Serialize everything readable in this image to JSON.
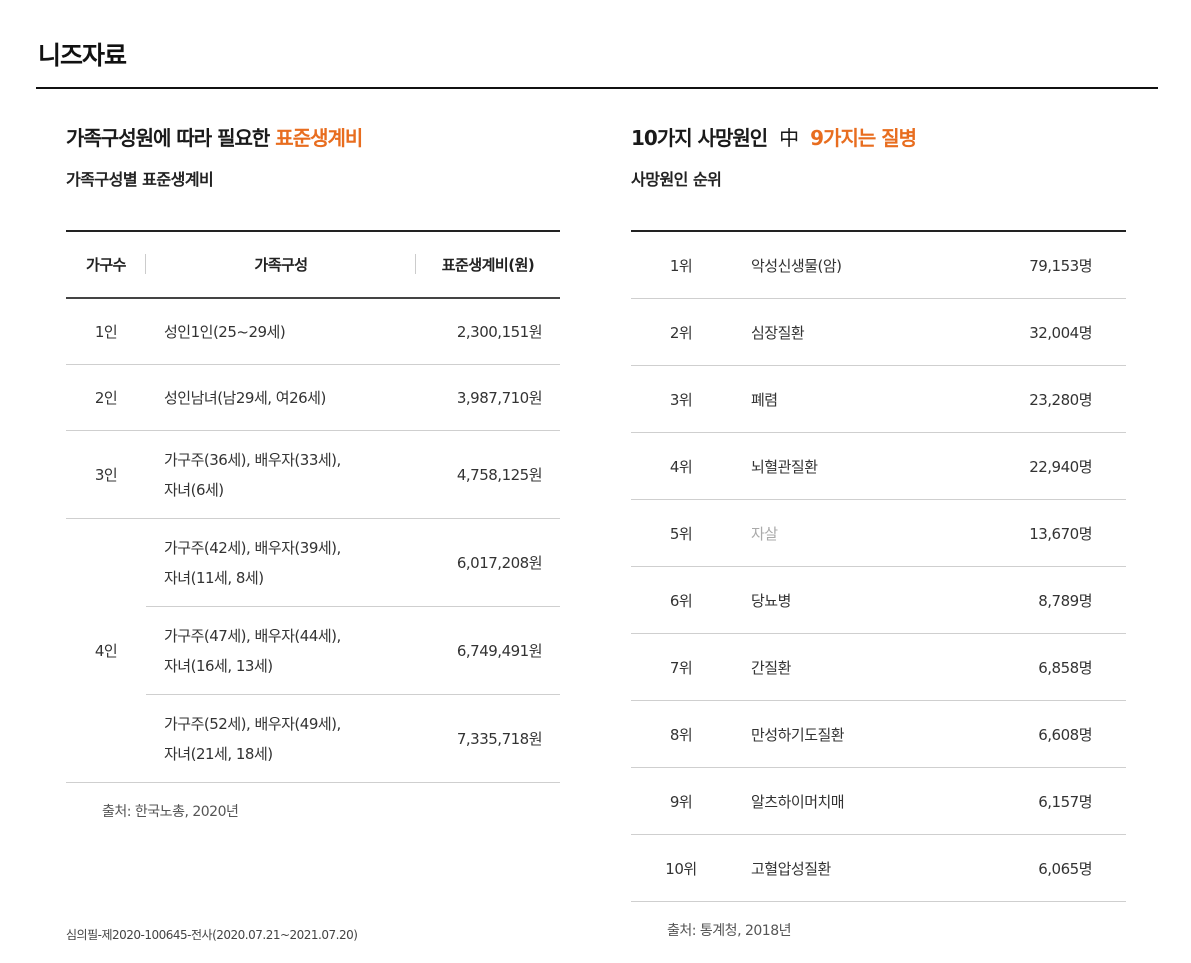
{
  "page": {
    "title": "니즈자료"
  },
  "left": {
    "headline_prefix": "가족구성원에 따라 필요한",
    "headline_highlight": "표준생계비",
    "subhead": "가족구성별 표준생계비",
    "columns": [
      "가구수",
      "가족구성",
      "표준생계비(원)"
    ],
    "rows": [
      {
        "count": "1인",
        "composition": [
          "성인1인(25~29세)"
        ],
        "cost": "2,300,151원"
      },
      {
        "count": "2인",
        "composition": [
          "성인남녀(남29세, 여26세)"
        ],
        "cost": "3,987,710원"
      },
      {
        "count": "3인",
        "composition": [
          "가구주(36세), 배우자(33세),",
          "자녀(6세)"
        ],
        "cost": "4,758,125원"
      },
      {
        "count": "4인",
        "composition": [
          "가구주(42세), 배우자(39세),",
          "자녀(11세, 8세)"
        ],
        "cost": "6,017,208원"
      },
      {
        "count": "",
        "composition": [
          "가구주(47세), 배우자(44세),",
          "자녀(16세, 13세)"
        ],
        "cost": "6,749,491원"
      },
      {
        "count": "",
        "composition": [
          "가구주(52세), 배우자(49세),",
          "자녀(21세, 18세)"
        ],
        "cost": "7,335,718원"
      }
    ],
    "source": "출처: 한국노총, 2020년"
  },
  "right": {
    "headline_prefix": "10가지 사망원인",
    "headline_mid": "中",
    "headline_highlight": "9가지는 질병",
    "subhead": "사망원인 순위",
    "rows": [
      {
        "rank": "1위",
        "cause": "악성신생물(암)",
        "count": "79,153명"
      },
      {
        "rank": "2위",
        "cause": "심장질환",
        "count": "32,004명"
      },
      {
        "rank": "3위",
        "cause": "폐렴",
        "count": "23,280명"
      },
      {
        "rank": "4위",
        "cause": "뇌혈관질환",
        "count": "22,940명"
      },
      {
        "rank": "5위",
        "cause": "자살",
        "count": "13,670명"
      },
      {
        "rank": "6위",
        "cause": "당뇨병",
        "count": "8,789명"
      },
      {
        "rank": "7위",
        "cause": "간질환",
        "count": "6,858명"
      },
      {
        "rank": "8위",
        "cause": "만성하기도질환",
        "count": "6,608명"
      },
      {
        "rank": "9위",
        "cause": "알츠하이머치매",
        "count": "6,157명"
      },
      {
        "rank": "10위",
        "cause": "고혈압성질환",
        "count": "6,065명"
      }
    ],
    "source": "출처: 통계청, 2018년"
  },
  "footnote": "심의필-제2020-100645-전사(2020.07.21~2021.07.20)",
  "colors": {
    "highlight": "#e86d1f",
    "dim_text": "#aaaaaa"
  }
}
